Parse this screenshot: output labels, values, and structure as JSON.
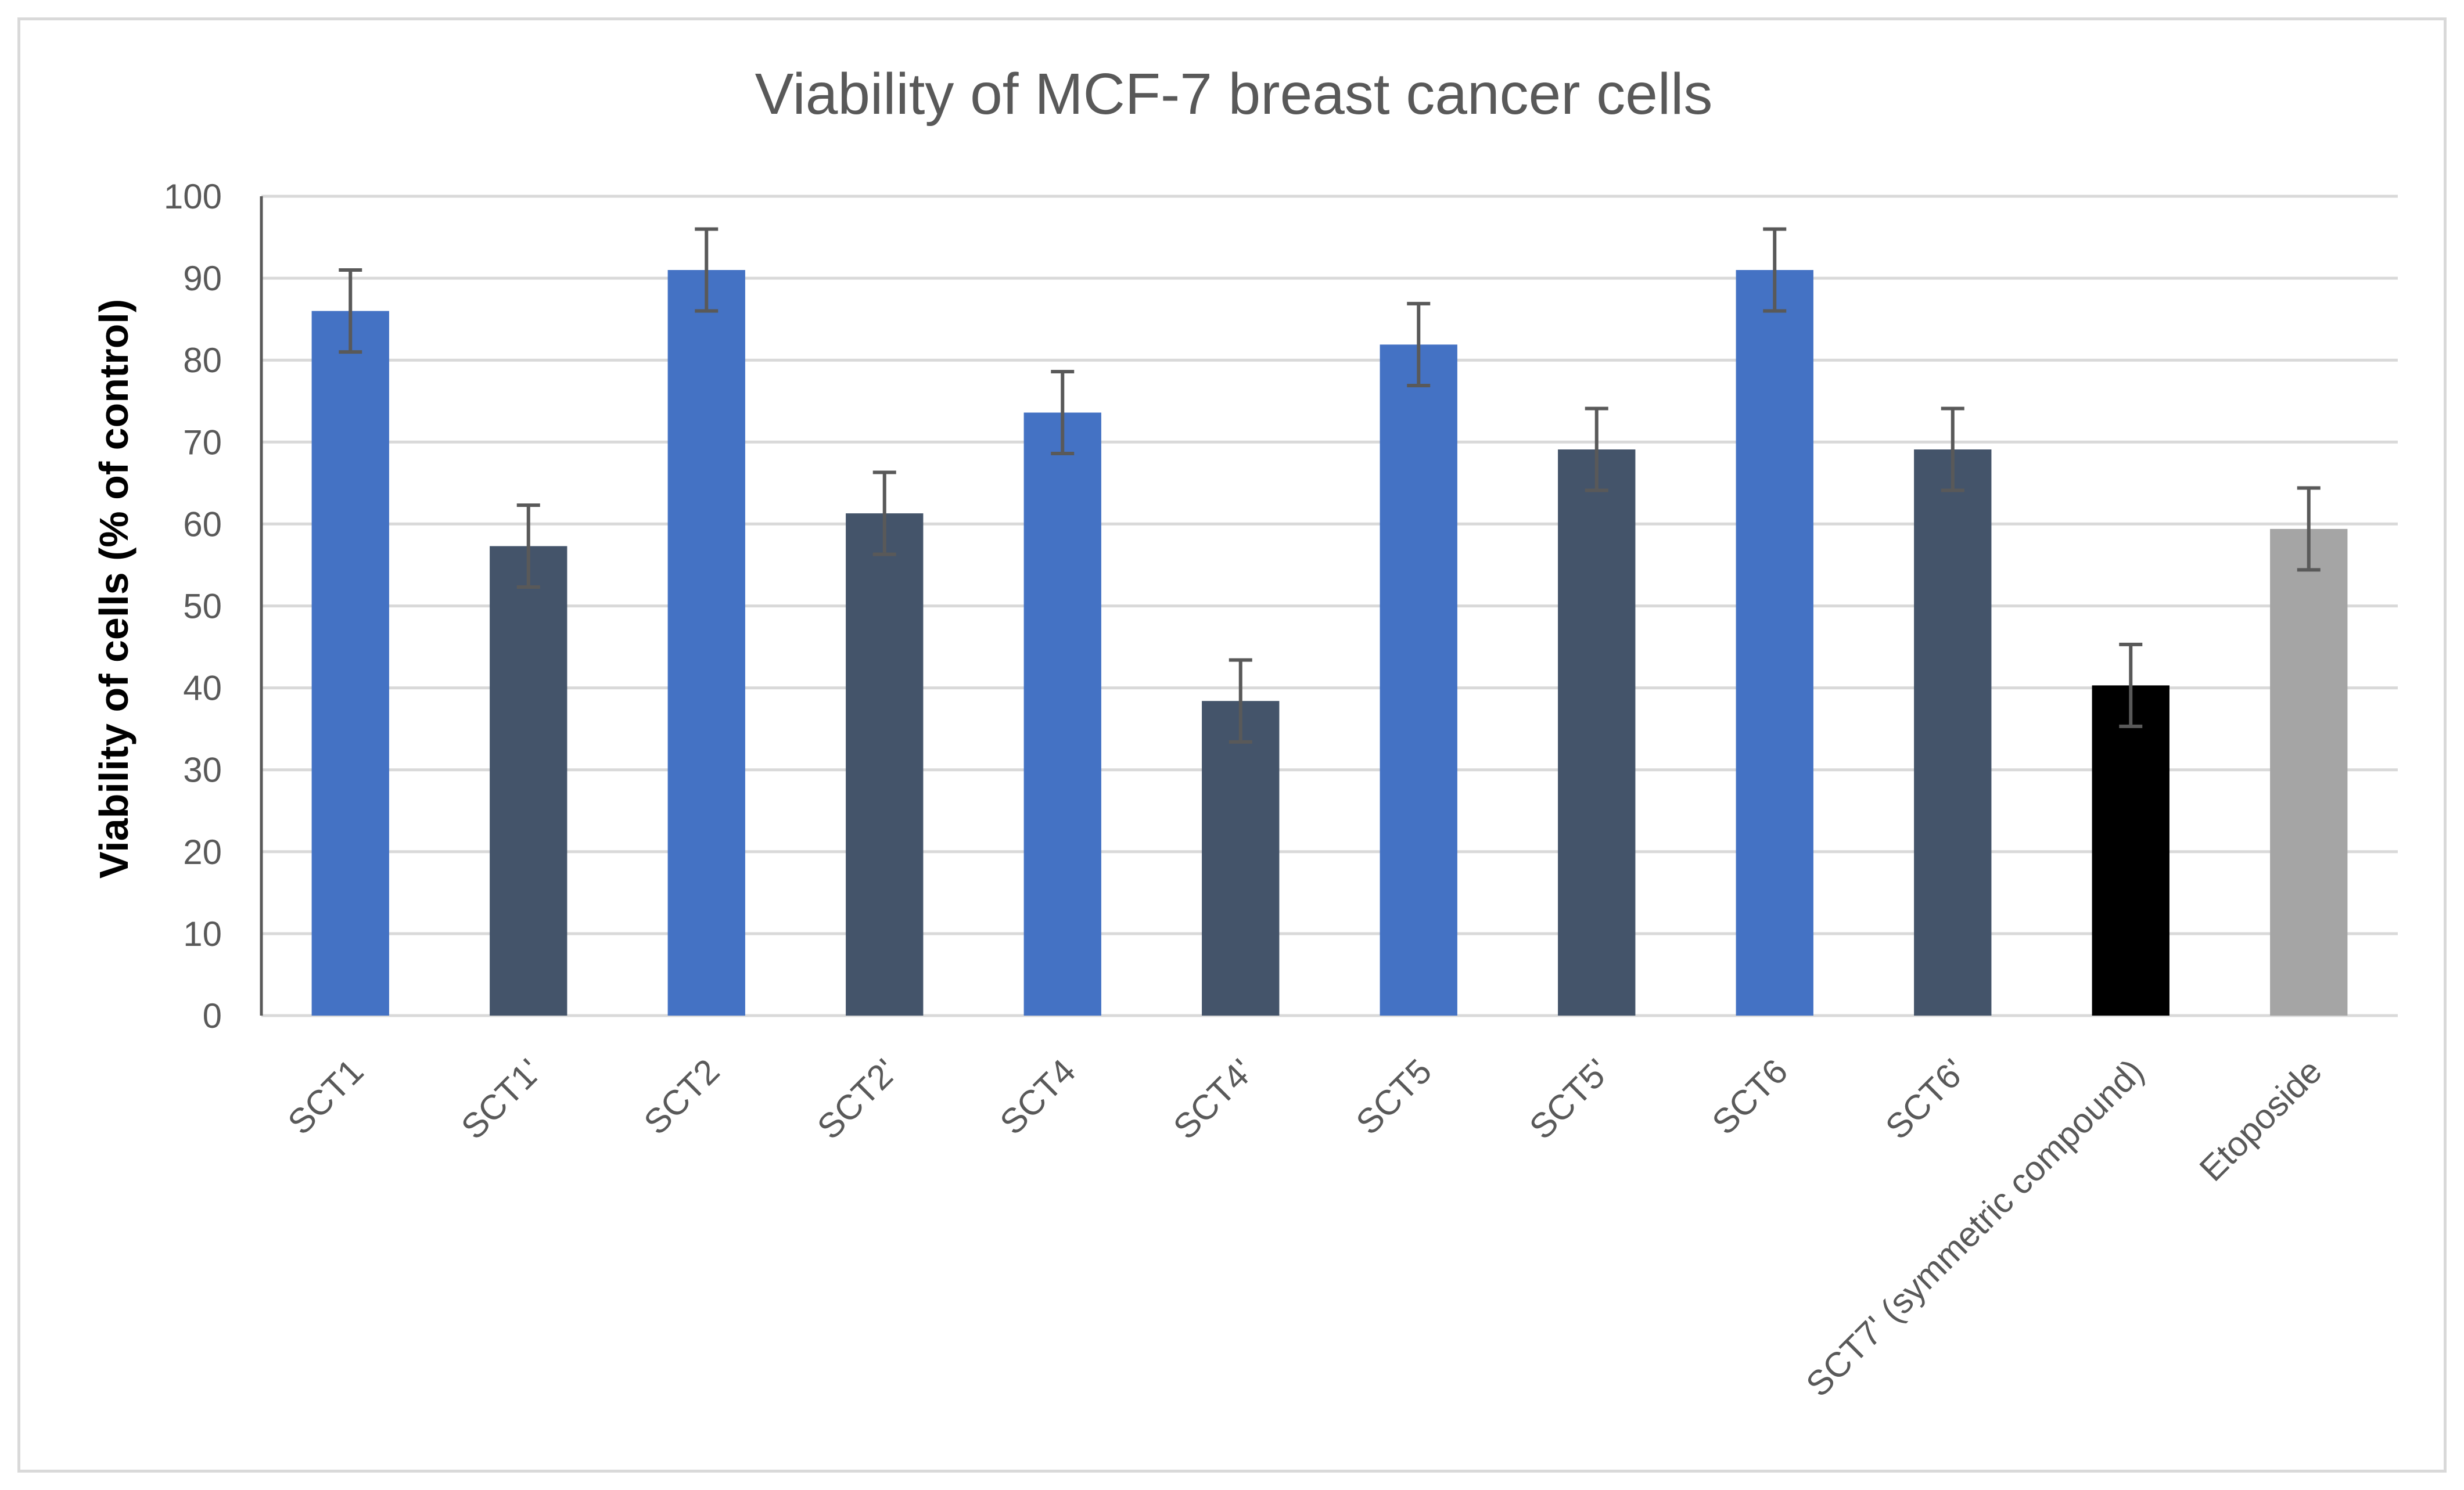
{
  "chart_data": {
    "type": "bar",
    "title": "Viability of MCF-7 breast cancer cells",
    "xlabel": "",
    "ylabel": "Viability of cells (% of control)",
    "ylim": [
      0,
      100
    ],
    "ytick_step": 10,
    "yticks": [
      "0",
      "10",
      "20",
      "30",
      "40",
      "50",
      "60",
      "70",
      "80",
      "90",
      "100"
    ],
    "grid": true,
    "categories": [
      "SCT1",
      "SCT1'",
      "SCT2",
      "SCT2'",
      "SCT4",
      "SCT4'",
      "SCT5",
      "SCT5'",
      "SCT6",
      "SCT6'",
      "SCT7' (symmetric compound)",
      "Etoposide"
    ],
    "values": [
      86,
      57.3,
      91,
      61.3,
      73.6,
      38.4,
      81.9,
      69.1,
      91,
      69.1,
      40.3,
      59.4
    ],
    "errors": [
      5,
      5,
      5,
      5,
      5,
      5,
      5,
      5,
      5,
      5,
      5,
      5
    ],
    "bar_colors": [
      "#4472c4",
      "#44546a",
      "#4472c4",
      "#44546a",
      "#4472c4",
      "#44546a",
      "#4472c4",
      "#44546a",
      "#4472c4",
      "#44546a",
      "#000000",
      "#a5a5a5"
    ],
    "error_bar_color": "#595959",
    "grid_color": "#d9d9d9"
  }
}
